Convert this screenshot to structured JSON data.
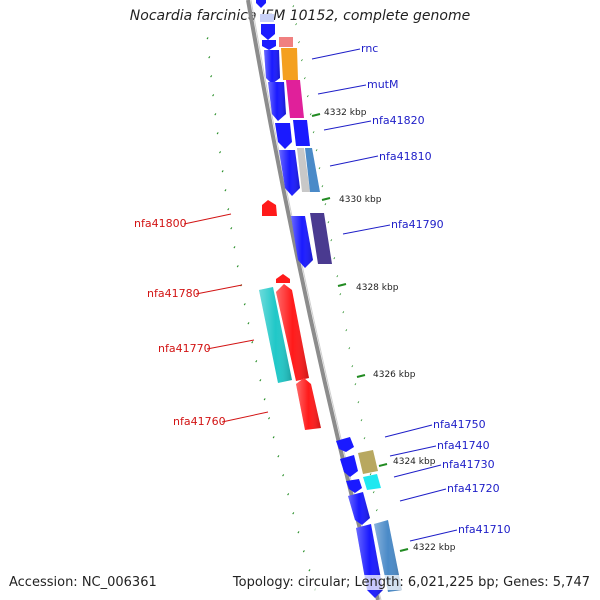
{
  "title": "Nocardia farcinica IFM 10152, complete genome",
  "footer": {
    "accession": "Accession: NC_006361",
    "summary": "Topology: circular; Length: 6,021,225 bp; Genes: 5,747"
  },
  "colors": {
    "backbone": "#8c8c8c",
    "forward_label": "#1e1ec8",
    "reverse_label": "#d21414",
    "tick": "#228b22",
    "gc_dots": "#228b22"
  },
  "ticks": [
    {
      "label": "4332 kbp"
    },
    {
      "label": "4330 kbp"
    },
    {
      "label": "4328 kbp"
    },
    {
      "label": "4326 kbp"
    },
    {
      "label": "4324 kbp"
    },
    {
      "label": "4322 kbp"
    }
  ],
  "genes": [
    {
      "name": "rnc",
      "strand": "forward",
      "color": "#1a1aff",
      "cog_color": "#f08080"
    },
    {
      "name": "mutM",
      "strand": "forward",
      "color": "#1a1aff",
      "cog_color": "#f4a020"
    },
    {
      "name": "nfa41820",
      "strand": "forward",
      "color": "#1a1aff",
      "cog_color": "#e0209a"
    },
    {
      "name": "nfa41810",
      "strand": "forward",
      "color": "#1a1aff",
      "cog_color": "#4a8ac8"
    },
    {
      "name": "nfa41800",
      "strand": "reverse",
      "color": "#ff1a1a"
    },
    {
      "name": "nfa41790",
      "strand": "forward",
      "color": "#1a1aff",
      "cog_color": "#4a3a90"
    },
    {
      "name": "nfa41780",
      "strand": "reverse",
      "color": "#ff1a1a"
    },
    {
      "name": "nfa41770",
      "strand": "reverse",
      "color": "#ff1a1a",
      "cog_color": "#20c8c8"
    },
    {
      "name": "nfa41760",
      "strand": "reverse",
      "color": "#ff1a1a"
    },
    {
      "name": "nfa41750",
      "strand": "forward",
      "color": "#1a1aff"
    },
    {
      "name": "nfa41740",
      "strand": "forward",
      "color": "#1a1aff",
      "cog_color": "#b8a860"
    },
    {
      "name": "nfa41730",
      "strand": "forward",
      "color": "#1a1aff",
      "cog_color": "#20e8f0"
    },
    {
      "name": "nfa41720",
      "strand": "forward",
      "color": "#1a1aff"
    },
    {
      "name": "nfa41710",
      "strand": "forward",
      "color": "#1a1aff",
      "cog_color": "#4a8ac8"
    }
  ]
}
